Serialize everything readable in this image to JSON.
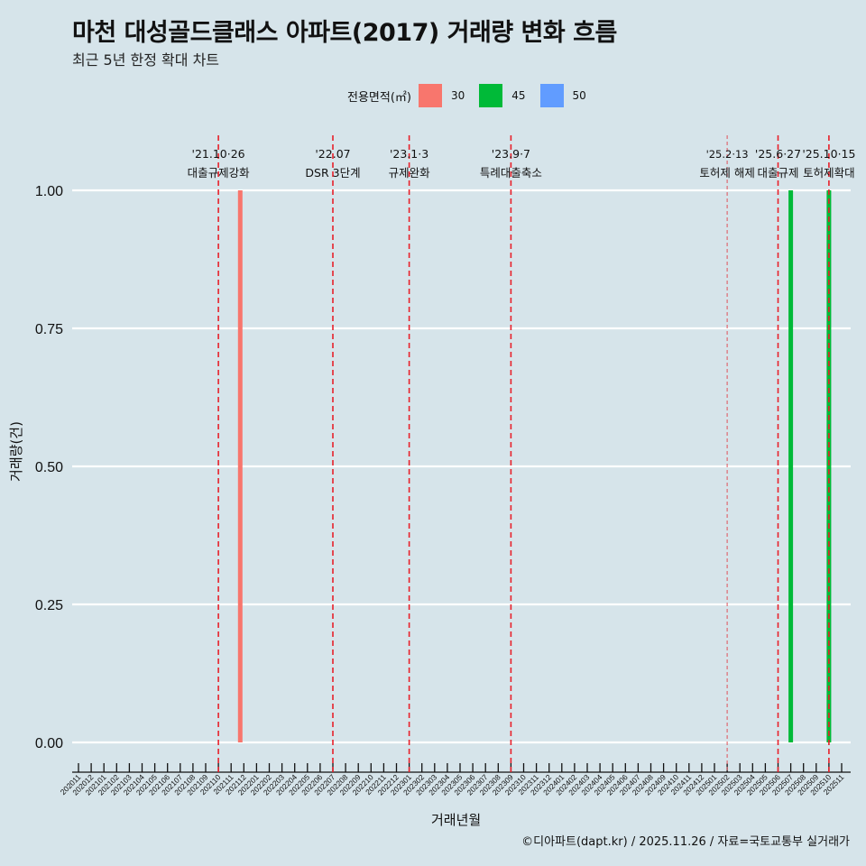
{
  "header": {
    "title": "마천 대성골드클래스 아파트(2017) 거래량 변화 흐름",
    "subtitle": "최근 5년 한정 확대 차트"
  },
  "legend": {
    "title": "전용면적(㎡)",
    "items": [
      {
        "label": "30",
        "color": "#f8766d"
      },
      {
        "label": "45",
        "color": "#00ba38"
      },
      {
        "label": "50",
        "color": "#619cff"
      }
    ]
  },
  "axes": {
    "xlabel": "거래년월",
    "ylabel": "거래량(건)"
  },
  "caption": "©디아파트(dapt.kr) / 2025.11.26 / 자료=국토교통부 실거래가",
  "chart_data": {
    "type": "bar",
    "title": "마천 대성골드클래스 아파트(2017) 거래량 변화 흐름",
    "subtitle": "최근 5년 한정 확대 차트",
    "xlabel": "거래년월",
    "ylabel": "거래량(건)",
    "ylim": [
      0,
      1
    ],
    "yticks": [
      "0.00",
      "0.25",
      "0.50",
      "0.75",
      "1.00"
    ],
    "legend_title": "전용면적(㎡)",
    "legend_position": "top",
    "grid": true,
    "categories": [
      "202011",
      "202012",
      "202101",
      "202102",
      "202103",
      "202104",
      "202105",
      "202106",
      "202107",
      "202108",
      "202109",
      "202110",
      "202111",
      "202112",
      "202201",
      "202202",
      "202203",
      "202204",
      "202205",
      "202206",
      "202207",
      "202208",
      "202209",
      "202210",
      "202211",
      "202212",
      "202301",
      "202302",
      "202303",
      "202304",
      "202305",
      "202306",
      "202307",
      "202308",
      "202309",
      "202310",
      "202311",
      "202312",
      "202401",
      "202402",
      "202403",
      "202404",
      "202405",
      "202406",
      "202407",
      "202408",
      "202409",
      "202410",
      "202411",
      "202412",
      "202501",
      "202502",
      "202503",
      "202504",
      "202505",
      "202506",
      "202507",
      "202508",
      "202509",
      "202510",
      "202511"
    ],
    "series": [
      {
        "name": "30",
        "color": "#f8766d",
        "points": [
          {
            "x": "202112",
            "y": 1
          }
        ]
      },
      {
        "name": "45",
        "color": "#00ba38",
        "points": [
          {
            "x": "202507",
            "y": 1
          },
          {
            "x": "202510",
            "y": 1
          }
        ]
      },
      {
        "name": "50",
        "color": "#619cff",
        "points": []
      }
    ],
    "annotations": [
      {
        "x": "202110",
        "date": "'21.10·26",
        "label": "대출규제강화",
        "style": "dashed"
      },
      {
        "x": "202207",
        "date": "'22.07",
        "label": "DSR 3단계",
        "style": "dashed"
      },
      {
        "x": "202301",
        "date": "'23.1·3",
        "label": "규제완화",
        "style": "dashed"
      },
      {
        "x": "202309",
        "date": "'23.9·7",
        "label": "특례대출축소",
        "style": "dashed"
      },
      {
        "x": "202502",
        "date": "'25.2·13",
        "label": "토허제 해제",
        "style": "dotted-thin"
      },
      {
        "x": "202506",
        "date": "'25.6·27",
        "label": "대출규제",
        "style": "dashed"
      },
      {
        "x": "202510",
        "date": "'25.10·15",
        "label": "토허제확대",
        "style": "dashed"
      }
    ]
  }
}
